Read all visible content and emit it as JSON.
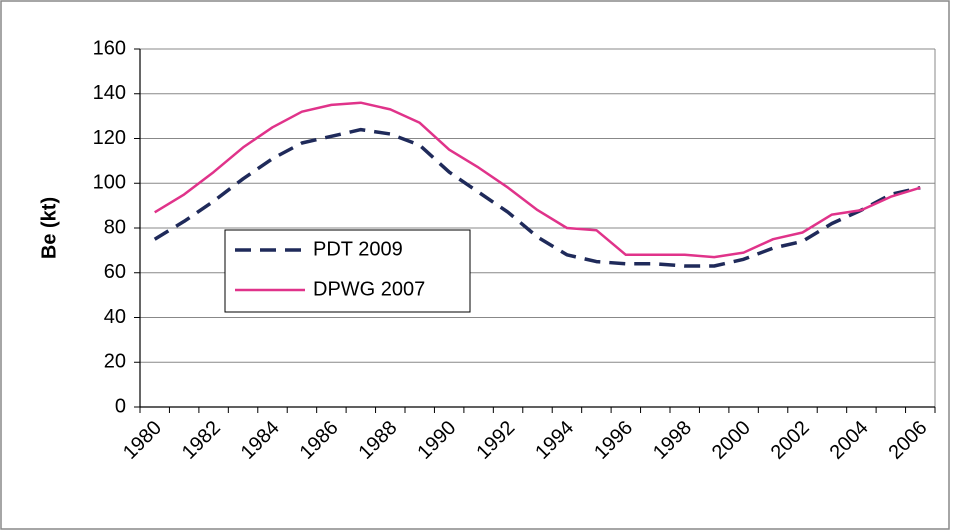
{
  "chart_data": {
    "type": "line",
    "y_label": "Be (kt)",
    "categories": [
      "1980",
      null,
      "1982",
      null,
      "1984",
      null,
      "1986",
      null,
      "1988",
      null,
      "1990",
      null,
      "1992",
      null,
      "1994",
      null,
      "1996",
      null,
      "1998",
      null,
      "2000",
      null,
      "2002",
      null,
      "2004",
      null,
      "2006"
    ],
    "series": [
      {
        "name": "PDT 2009",
        "color": "#1f2a5a",
        "dash": true,
        "values": [
          75,
          83,
          92,
          102,
          111,
          118,
          121,
          124,
          122,
          117,
          105,
          96,
          87,
          76,
          68,
          65,
          64,
          64,
          63,
          63,
          66,
          71,
          74,
          82,
          88,
          95,
          98
        ]
      },
      {
        "name": "DPWG 2007",
        "color": "#e0338a",
        "dash": false,
        "values": [
          87,
          95,
          105,
          116,
          125,
          132,
          135,
          136,
          133,
          127,
          115,
          107,
          98,
          88,
          80,
          79,
          68,
          68,
          68,
          67,
          69,
          75,
          78,
          86,
          88,
          94,
          98
        ]
      }
    ],
    "ylim": [
      0,
      160
    ],
    "yticks": [
      0,
      20,
      40,
      60,
      80,
      100,
      120,
      140,
      160
    ],
    "grid": true
  }
}
